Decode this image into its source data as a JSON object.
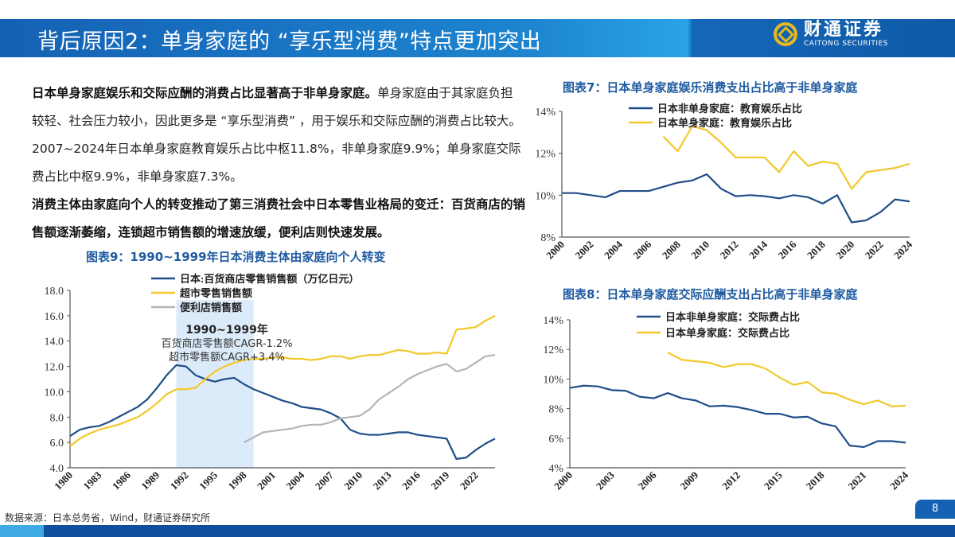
{
  "header": {
    "title": "背后原因2：单身家庭的 “享乐型消费”特点更加突出",
    "logo_cn": "财通证券",
    "logo_en": "CAITONG SECURITIES"
  },
  "paragraph": {
    "p1_bold": "日本单身家庭娱乐和交际应酬的消费占比显著高于非单身家庭。",
    "p1_text": "单身家庭由于其家庭负担较轻、社会压力较小，因此更多是 “享乐型消费” ，用于娱乐和交际应酬的消费占比较大。2007~2024年日本单身家庭教育娱乐占比中枢11.8%，非单身家庭9.9%；单身家庭交际费占比中枢9.9%，非单身家庭7.3%。",
    "p2_bold": "消费主体由家庭向个人的转变推动了第三消费社会中日本零售业格局的变迁：百货商店的销售额逐渐萎缩，连锁超市销售额的增速放缓，便利店则快速发展。"
  },
  "source": "数据来源：日本总务省，Wind，财通证券研究所",
  "page_number": "8",
  "colors": {
    "blue": "#1f4e89",
    "yellow": "#f2c82a",
    "gray": "#b5b5b5",
    "shade": "#dcebfa",
    "title": "#1e5aa0"
  },
  "chart_data": [
    {
      "id": "c9",
      "type": "line",
      "title": "图表9：1990~1999年日本消费主体由家庭向个人转变",
      "ylim": [
        4,
        18
      ],
      "yticks": [
        "4.0",
        "6.0",
        "8.0",
        "10.0",
        "12.0",
        "14.0",
        "16.0",
        "18.0"
      ],
      "xlim": [
        1980,
        2024
      ],
      "xticks": [
        "1980",
        "1983",
        "1986",
        "1989",
        "1992",
        "1995",
        "1998",
        "2001",
        "2004",
        "2007",
        "2010",
        "2013",
        "2016",
        "2019",
        "2022"
      ],
      "shaded_range": [
        1991,
        1999
      ],
      "annotation": {
        "title": "1990~1999年",
        "line1": "百货商店零售额CAGR-1.2%",
        "line2": "超市零售额CAGR+3.4%"
      },
      "series": [
        {
          "name": "日本:百货商店零售销售额（万亿日元）",
          "color": "#1f4e89",
          "x0": 1980,
          "values": [
            6.5,
            7.0,
            7.2,
            7.3,
            7.6,
            8.0,
            8.4,
            8.8,
            9.4,
            10.3,
            11.3,
            12.1,
            12.0,
            11.3,
            11.0,
            10.8,
            11.0,
            11.1,
            10.6,
            10.2,
            9.9,
            9.6,
            9.3,
            9.1,
            8.8,
            8.7,
            8.6,
            8.3,
            7.9,
            7.0,
            6.7,
            6.6,
            6.6,
            6.7,
            6.8,
            6.8,
            6.6,
            6.5,
            6.4,
            6.3,
            4.7,
            4.8,
            5.4,
            5.9,
            6.3
          ]
        },
        {
          "name": "超市零售销售额",
          "color": "#f2c82a",
          "x0": 1980,
          "values": [
            5.7,
            6.3,
            6.7,
            7.0,
            7.2,
            7.4,
            7.7,
            8.0,
            8.5,
            9.1,
            9.8,
            10.2,
            10.2,
            10.3,
            11.0,
            11.6,
            12.0,
            12.3,
            12.5,
            12.6,
            12.6,
            12.7,
            12.7,
            12.6,
            12.6,
            12.5,
            12.6,
            12.8,
            12.8,
            12.6,
            12.8,
            12.9,
            12.9,
            13.1,
            13.3,
            13.2,
            13.0,
            13.0,
            13.1,
            13.0,
            14.9,
            15.0,
            15.1,
            15.6,
            16.0
          ]
        },
        {
          "name": "便利店销售额",
          "color": "#b5b5b5",
          "x0": 1998,
          "values": [
            6.0,
            6.4,
            6.8,
            6.9,
            7.0,
            7.1,
            7.3,
            7.4,
            7.4,
            7.6,
            7.9,
            8.0,
            8.1,
            8.6,
            9.4,
            9.9,
            10.4,
            11.0,
            11.4,
            11.7,
            12.0,
            12.2,
            11.6,
            11.8,
            12.3,
            12.8,
            12.9
          ]
        }
      ]
    },
    {
      "id": "c7",
      "type": "line",
      "title": "图表7：日本单身家庭娱乐消费支出占比高于非单身家庭",
      "ylim": [
        8,
        14
      ],
      "yticks": [
        "8%",
        "10%",
        "12%",
        "14%"
      ],
      "xlim": [
        2000,
        2024
      ],
      "xticks": [
        "2000",
        "2002",
        "2004",
        "2006",
        "2008",
        "2010",
        "2012",
        "2014",
        "2016",
        "2018",
        "2020",
        "2022",
        "2024"
      ],
      "series": [
        {
          "name": "日本非单身家庭：教育娱乐占比",
          "color": "#1f4e89",
          "x0": 2000,
          "values": [
            10.1,
            10.1,
            10.0,
            9.9,
            10.2,
            10.2,
            10.2,
            10.4,
            10.6,
            10.7,
            11.0,
            10.3,
            9.95,
            10.0,
            9.95,
            9.85,
            10.0,
            9.9,
            9.6,
            10.0,
            8.7,
            8.8,
            9.2,
            9.8,
            9.7
          ]
        },
        {
          "name": "日本单身家庭：教育娱乐占比",
          "color": "#f2c82a",
          "x0": 2007,
          "values": [
            12.8,
            12.1,
            13.3,
            13.1,
            12.5,
            11.8,
            11.8,
            11.8,
            11.1,
            12.1,
            11.4,
            11.6,
            11.5,
            10.3,
            11.1,
            11.2,
            11.3,
            11.5
          ]
        }
      ]
    },
    {
      "id": "c8",
      "type": "line",
      "title": "图表8：日本单身家庭交际应酬支出占比高于非单身家庭",
      "ylim": [
        4,
        14
      ],
      "yticks": [
        "4%",
        "6%",
        "8%",
        "10%",
        "12%",
        "14%"
      ],
      "xlim": [
        2000,
        2024
      ],
      "xticks": [
        "2000",
        "2003",
        "2006",
        "2009",
        "2012",
        "2015",
        "2018",
        "2021",
        "2024"
      ],
      "series": [
        {
          "name": "日本非单身家庭：交际费占比",
          "color": "#1f4e89",
          "x0": 2000,
          "values": [
            9.4,
            9.55,
            9.5,
            9.25,
            9.2,
            8.8,
            8.7,
            9.05,
            8.7,
            8.55,
            8.15,
            8.2,
            8.1,
            7.9,
            7.65,
            7.65,
            7.4,
            7.45,
            7.0,
            6.8,
            5.5,
            5.4,
            5.8,
            5.8,
            5.7
          ]
        },
        {
          "name": "日本单身家庭：交际费占比",
          "color": "#f2c82a",
          "x0": 2007,
          "values": [
            11.8,
            11.3,
            11.2,
            11.1,
            10.8,
            11.0,
            11.0,
            10.7,
            10.1,
            9.6,
            9.8,
            9.1,
            9.0,
            8.6,
            8.3,
            8.55,
            8.15,
            8.2
          ]
        }
      ]
    }
  ]
}
